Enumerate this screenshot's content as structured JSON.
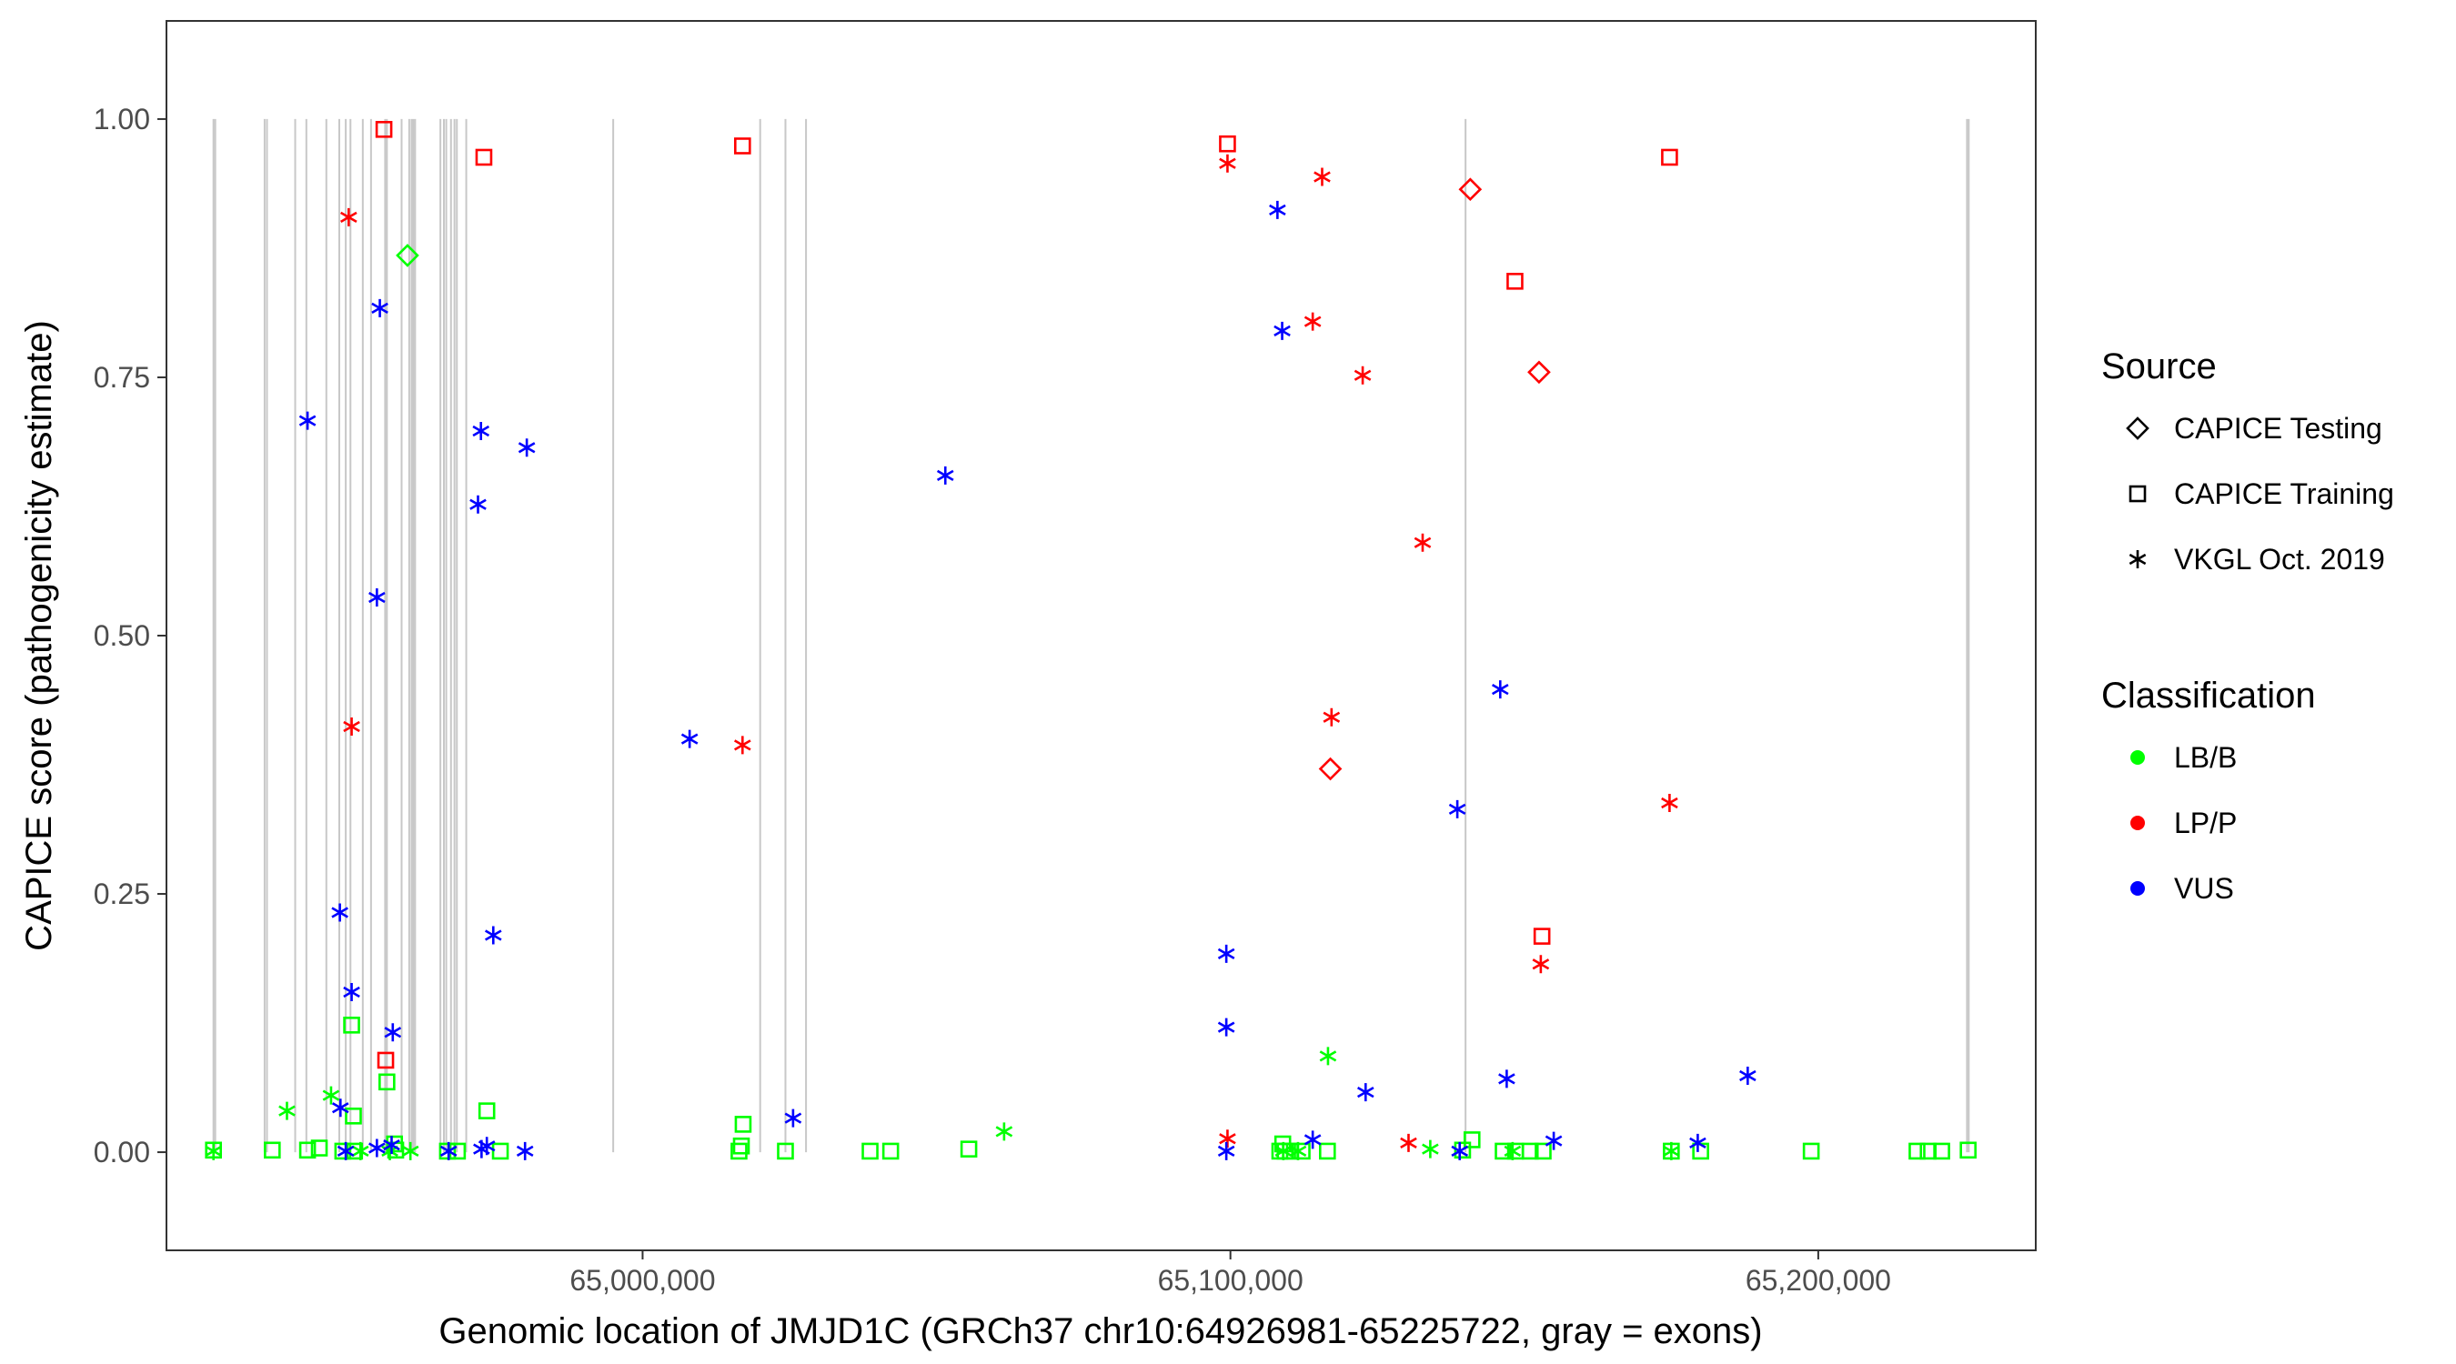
{
  "chart_data": {
    "type": "scatter",
    "xlabel": "Genomic location of JMJD1C (GRCh37 chr10:64926981-65225722, gray = exons)",
    "ylabel": "CAPICE score (pathogenicity estimate)",
    "xlim": [
      64919000,
      65237000
    ],
    "ylim": [
      -0.095,
      1.095
    ],
    "xticks": [
      65000000,
      65100000,
      65200000
    ],
    "xtick_labels": [
      "65,000,000",
      "65,100,000",
      "65,200,000"
    ],
    "yticks": [
      0,
      0.25,
      0.5,
      0.75,
      1
    ],
    "ytick_labels": [
      "0.00",
      "0.25",
      "0.50",
      "0.75",
      "1.00"
    ],
    "grid": false,
    "exons": [
      64927000,
      64927300,
      64935700,
      64936100,
      64940900,
      64942800,
      64946200,
      64948400,
      64949500,
      64950300,
      64952400,
      64953800,
      64956200,
      64956500,
      64959000,
      64960300,
      64960700,
      64961000,
      64961300,
      64965600,
      64966200,
      64966600,
      64967400,
      64968000,
      64968400,
      64970000,
      64995000,
      65020000,
      65024300,
      65027800,
      65140000,
      65225300,
      65225600
    ],
    "legend": {
      "placement": "right",
      "source": {
        "title": "Source",
        "entries": [
          {
            "label": "CAPICE Testing",
            "shape": "diamond"
          },
          {
            "label": "CAPICE Training",
            "shape": "square"
          },
          {
            "label": "VKGL Oct. 2019",
            "shape": "asterisk"
          }
        ]
      },
      "classification": {
        "title": "Classification",
        "entries": [
          {
            "label": "LB/B",
            "color": "#00ff00"
          },
          {
            "label": "LP/P",
            "color": "#ff0000"
          },
          {
            "label": "VUS",
            "color": "#0000ff"
          }
        ]
      }
    },
    "series": [
      {
        "source": "CAPICE Testing",
        "classification": "LB/B",
        "points": [
          [
            64960000,
            0.868
          ]
        ]
      },
      {
        "source": "CAPICE Testing",
        "classification": "LP/P",
        "points": [
          [
            65140800,
            0.932
          ],
          [
            65152500,
            0.755
          ],
          [
            65117000,
            0.371
          ]
        ]
      },
      {
        "source": "CAPICE Training",
        "classification": "LB/B",
        "points": [
          [
            64927000,
            0.002
          ],
          [
            64937000,
            0.002
          ],
          [
            64943000,
            0.002
          ],
          [
            64945000,
            0.004
          ],
          [
            64949000,
            0.001
          ],
          [
            64950500,
            0.123
          ],
          [
            64950800,
            0.035
          ],
          [
            64951000,
            0.001
          ],
          [
            64956500,
            0.068
          ],
          [
            64957800,
            0.008
          ],
          [
            64958000,
            0.002
          ],
          [
            64966800,
            0.001
          ],
          [
            64968500,
            0.001
          ],
          [
            64973500,
            0.04
          ],
          [
            64975800,
            0.001
          ],
          [
            65016400,
            0.001
          ],
          [
            65016800,
            0.006
          ],
          [
            65017100,
            0.027
          ],
          [
            65024300,
            0.001
          ],
          [
            65038700,
            0.001
          ],
          [
            65042200,
            0.001
          ],
          [
            65055500,
            0.003
          ],
          [
            65108400,
            0.001
          ],
          [
            65108900,
            0.008
          ],
          [
            65109300,
            0.001
          ],
          [
            65110200,
            0.001
          ],
          [
            65112200,
            0.001
          ],
          [
            65116500,
            0.001
          ],
          [
            65139500,
            0.002
          ],
          [
            65141100,
            0.012
          ],
          [
            65146400,
            0.001
          ],
          [
            65148500,
            0.001
          ],
          [
            65151000,
            0.001
          ],
          [
            65153200,
            0.001
          ],
          [
            65175000,
            0.001
          ],
          [
            65180000,
            0.001
          ],
          [
            65198800,
            0.001
          ],
          [
            65216800,
            0.001
          ],
          [
            65218700,
            0.001
          ],
          [
            65221000,
            0.001
          ],
          [
            65225500,
            0.002
          ]
        ]
      },
      {
        "source": "CAPICE Training",
        "classification": "LP/P",
        "points": [
          [
            64956000,
            0.99
          ],
          [
            64973000,
            0.963
          ],
          [
            65017000,
            0.974
          ],
          [
            65099500,
            0.976
          ],
          [
            65148400,
            0.843
          ],
          [
            65174700,
            0.963
          ],
          [
            65153000,
            0.209
          ],
          [
            64956300,
            0.089
          ]
        ]
      },
      {
        "source": "VKGL Oct. 2019",
        "classification": "LB/B",
        "points": [
          [
            64927000,
            0.001
          ],
          [
            64939500,
            0.04
          ],
          [
            64947000,
            0.055
          ],
          [
            64952000,
            0.001
          ],
          [
            64957000,
            0.001
          ],
          [
            64960500,
            0.001
          ],
          [
            65061500,
            0.02
          ],
          [
            65116600,
            0.093
          ],
          [
            65109000,
            0.001
          ],
          [
            65111500,
            0.001
          ],
          [
            65134000,
            0.003
          ],
          [
            65148000,
            0.001
          ],
          [
            65175000,
            0.001
          ]
        ]
      },
      {
        "source": "VKGL Oct. 2019",
        "classification": "LP/P",
        "points": [
          [
            64950000,
            0.905
          ],
          [
            64950500,
            0.412
          ],
          [
            65017000,
            0.394
          ],
          [
            65099500,
            0.957
          ],
          [
            65115600,
            0.944
          ],
          [
            65114000,
            0.804
          ],
          [
            65122500,
            0.752
          ],
          [
            65132700,
            0.59
          ],
          [
            65117200,
            0.421
          ],
          [
            65174700,
            0.338
          ],
          [
            65152800,
            0.182
          ],
          [
            65099500,
            0.013
          ],
          [
            65130300,
            0.009
          ]
        ]
      },
      {
        "source": "VKGL Oct. 2019",
        "classification": "VUS",
        "points": [
          [
            64943000,
            0.708
          ],
          [
            64955300,
            0.817
          ],
          [
            64972500,
            0.698
          ],
          [
            64980300,
            0.682
          ],
          [
            64972000,
            0.627
          ],
          [
            64954800,
            0.537
          ],
          [
            65051500,
            0.655
          ],
          [
            65008000,
            0.4
          ],
          [
            64948500,
            0.232
          ],
          [
            64950500,
            0.155
          ],
          [
            64957500,
            0.116
          ],
          [
            64974600,
            0.21
          ],
          [
            64948600,
            0.043
          ],
          [
            65025600,
            0.033
          ],
          [
            65108000,
            0.912
          ],
          [
            65108800,
            0.795
          ],
          [
            65145900,
            0.448
          ],
          [
            65138600,
            0.332
          ],
          [
            65099300,
            0.192
          ],
          [
            65099300,
            0.121
          ],
          [
            65147000,
            0.071
          ],
          [
            65123000,
            0.058
          ],
          [
            65188000,
            0.074
          ],
          [
            65155000,
            0.011
          ],
          [
            65179500,
            0.009
          ],
          [
            65114000,
            0.012
          ],
          [
            65139000,
            0.001
          ],
          [
            65099300,
            0.001
          ],
          [
            64949500,
            0.001
          ],
          [
            64954800,
            0.004
          ],
          [
            64957300,
            0.007
          ],
          [
            64967000,
            0.001
          ],
          [
            64972600,
            0.003
          ],
          [
            64973500,
            0.006
          ],
          [
            64980000,
            0.001
          ]
        ]
      }
    ]
  }
}
